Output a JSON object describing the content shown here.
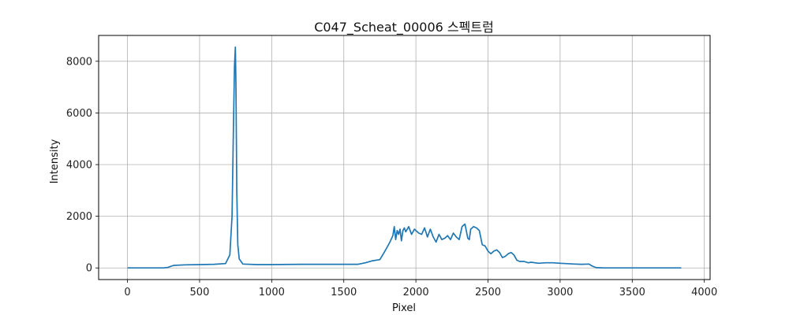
{
  "chart_data": {
    "type": "line",
    "title": "C047_Scheat_00006 스펙트럼",
    "xlabel": "Pixel",
    "ylabel": "Intensity",
    "xlim": [
      -200,
      4040
    ],
    "ylim": [
      -450,
      9000
    ],
    "xticks": [
      0,
      500,
      1000,
      1500,
      2000,
      2500,
      3000,
      3500,
      4000
    ],
    "yticks": [
      0,
      2000,
      4000,
      6000,
      8000
    ],
    "grid": true,
    "line_color": "#1f77b4",
    "series": [
      {
        "x": [
          0,
          200,
          250,
          280,
          320,
          400,
          500,
          600,
          680,
          710,
          725,
          735,
          742,
          748,
          752,
          758,
          765,
          775,
          800,
          900,
          1000,
          1200,
          1400,
          1600,
          1650,
          1700,
          1750,
          1780,
          1800,
          1820,
          1840,
          1850,
          1860,
          1870,
          1880,
          1890,
          1900,
          1910,
          1920,
          1930,
          1950,
          1970,
          1990,
          2000,
          2020,
          2040,
          2060,
          2080,
          2100,
          2120,
          2140,
          2160,
          2180,
          2200,
          2220,
          2240,
          2260,
          2280,
          2300,
          2320,
          2340,
          2360,
          2370,
          2380,
          2400,
          2420,
          2440,
          2460,
          2480,
          2500,
          2520,
          2540,
          2560,
          2580,
          2600,
          2620,
          2640,
          2660,
          2680,
          2700,
          2720,
          2750,
          2780,
          2800,
          2850,
          2900,
          2950,
          3000,
          3100,
          3150,
          3200,
          3220,
          3250,
          3300,
          3500,
          3840
        ],
        "y": [
          0,
          0,
          0,
          20,
          100,
          120,
          130,
          140,
          170,
          500,
          2000,
          5500,
          7800,
          8550,
          7200,
          3000,
          900,
          350,
          150,
          130,
          130,
          140,
          140,
          140,
          200,
          280,
          320,
          600,
          800,
          1000,
          1250,
          1600,
          1100,
          1450,
          1300,
          1500,
          1050,
          1450,
          1550,
          1400,
          1600,
          1300,
          1500,
          1450,
          1350,
          1300,
          1550,
          1200,
          1500,
          1200,
          1000,
          1300,
          1100,
          1150,
          1250,
          1100,
          1350,
          1200,
          1100,
          1600,
          1700,
          1150,
          1100,
          1500,
          1600,
          1550,
          1450,
          900,
          850,
          650,
          550,
          650,
          700,
          600,
          400,
          450,
          550,
          600,
          500,
          300,
          250,
          250,
          200,
          220,
          180,
          200,
          200,
          180,
          150,
          140,
          150,
          80,
          10,
          0,
          0,
          0
        ]
      }
    ]
  }
}
